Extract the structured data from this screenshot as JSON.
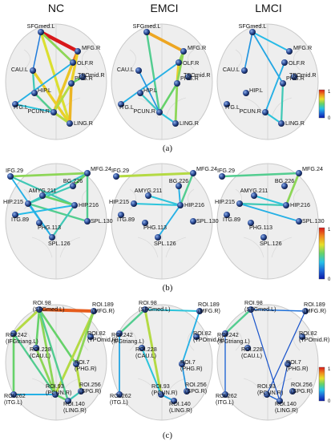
{
  "columns": [
    "NC",
    "EMCI",
    "LMCI"
  ],
  "colorbar": {
    "max_label": "1",
    "min_label": "0"
  },
  "colorscale": [
    "#0a18a8",
    "#1e6ad8",
    "#27c2e8",
    "#66d26a",
    "#e8e02a",
    "#f08a1e",
    "#d8181a"
  ],
  "panels": [
    {
      "caption": "(a)",
      "nodes": [
        {
          "id": "sfg",
          "label": "SFGmed.L"
        },
        {
          "id": "mfg",
          "label": "MFG.R"
        },
        {
          "id": "olf",
          "label": "OLF.R"
        },
        {
          "id": "cau",
          "label": "CAU.L"
        },
        {
          "id": "tpo",
          "label": "TPOmid.R"
        },
        {
          "id": "phg",
          "label": "PHG.R"
        },
        {
          "id": "hip",
          "label": "HIP.L"
        },
        {
          "id": "itg",
          "label": "ITG.L"
        },
        {
          "id": "pcun",
          "label": "PCUN.R"
        },
        {
          "id": "ling",
          "label": "LING.R"
        }
      ],
      "edges": [
        [
          [
            "sfg",
            "mfg",
            1.0
          ],
          [
            "sfg",
            "olf",
            0.55
          ],
          [
            "sfg",
            "ling",
            0.65
          ],
          [
            "mfg",
            "olf",
            0.85
          ],
          [
            "mfg",
            "phg",
            0.7
          ],
          [
            "olf",
            "pcun",
            0.72
          ],
          [
            "cau",
            "hip",
            0.4
          ],
          [
            "cau",
            "ling",
            0.7
          ],
          [
            "hip",
            "pcun",
            0.45
          ],
          [
            "phg",
            "ling",
            0.75
          ],
          [
            "phg",
            "pcun",
            0.6
          ],
          [
            "itg",
            "pcun",
            0.35
          ],
          [
            "pcun",
            "ling",
            0.6
          ],
          [
            "sfg",
            "cau",
            0.2
          ],
          [
            "itg",
            "olf",
            0.3
          ],
          [
            "tpo",
            "phg",
            0.5
          ]
        ],
        [
          [
            "sfg",
            "mfg",
            0.78
          ],
          [
            "sfg",
            "pcun",
            0.45
          ],
          [
            "mfg",
            "olf",
            0.55
          ],
          [
            "olf",
            "phg",
            0.7
          ],
          [
            "mfg",
            "phg",
            0.55
          ],
          [
            "phg",
            "pcun",
            0.5
          ],
          [
            "phg",
            "ling",
            0.55
          ],
          [
            "hip",
            "pcun",
            0.38
          ],
          [
            "itg",
            "olf",
            0.3
          ],
          [
            "pcun",
            "ling",
            0.35
          ],
          [
            "cau",
            "pcun",
            0.25
          ]
        ],
        [
          [
            "sfg",
            "mfg",
            0.32
          ],
          [
            "sfg",
            "cau",
            0.25
          ],
          [
            "sfg",
            "phg",
            0.28
          ],
          [
            "phg",
            "ling",
            0.4
          ],
          [
            "pcun",
            "ling",
            0.35
          ],
          [
            "olf",
            "pcun",
            0.3
          ]
        ]
      ]
    },
    {
      "caption": "(b)",
      "nodes": [
        {
          "id": "ifg",
          "label": "IFG.29"
        },
        {
          "id": "mfg",
          "label": "MFG.24"
        },
        {
          "id": "bg",
          "label": "BG.226"
        },
        {
          "id": "amyg",
          "label": "AMYG.211"
        },
        {
          "id": "hipl",
          "label": "HIP.215"
        },
        {
          "id": "hipr",
          "label": "HIP.216"
        },
        {
          "id": "itg",
          "label": "ITG.89"
        },
        {
          "id": "phg",
          "label": "PHG.113"
        },
        {
          "id": "spl130",
          "label": "SPL.130"
        },
        {
          "id": "spl126",
          "label": "SPL.126"
        }
      ],
      "edges": [
        [
          [
            "ifg",
            "mfg",
            0.55
          ],
          [
            "ifg",
            "hipr",
            0.4
          ],
          [
            "mfg",
            "hipl",
            0.38
          ],
          [
            "mfg",
            "spl130",
            0.45
          ],
          [
            "bg",
            "hipl",
            0.4
          ],
          [
            "amyg",
            "hipr",
            0.5
          ],
          [
            "hipl",
            "spl126",
            0.3
          ],
          [
            "hipl",
            "spl130",
            0.45
          ],
          [
            "hipr",
            "itg",
            0.32
          ],
          [
            "hipr",
            "spl126",
            0.4
          ],
          [
            "mfg",
            "bg",
            0.5
          ],
          [
            "ifg",
            "spl126",
            0.3
          ]
        ],
        [
          [
            "ifg",
            "mfg",
            0.6
          ],
          [
            "mfg",
            "hipr",
            0.45
          ],
          [
            "hipl",
            "hipr",
            0.35
          ],
          [
            "hipr",
            "spl126",
            0.3
          ],
          [
            "amyg",
            "hipr",
            0.35
          ],
          [
            "bg",
            "hipr",
            0.3
          ]
        ],
        [
          [
            "ifg",
            "mfg",
            0.45
          ],
          [
            "mfg",
            "hipr",
            0.55
          ],
          [
            "hipl",
            "hipr",
            0.4
          ],
          [
            "hipl",
            "spl130",
            0.3
          ],
          [
            "amyg",
            "hipr",
            0.35
          ]
        ]
      ]
    },
    {
      "caption": "(c)",
      "nodes": [
        {
          "id": "sfg",
          "label": "ROI.98",
          "sub": "(SFGmed.L)"
        },
        {
          "id": "mfg",
          "label": "ROI.189",
          "sub": "(MFG.R)"
        },
        {
          "id": "ifg",
          "label": "ROI.242",
          "sub": "(IFGtriang.L)"
        },
        {
          "id": "tpo",
          "label": "ROI.82",
          "sub": "(TPOmid.R)"
        },
        {
          "id": "cau",
          "label": "ROI.228",
          "sub": "(CAU.L)"
        },
        {
          "id": "phg",
          "label": "ROI.7",
          "sub": "(PHG.R)"
        },
        {
          "id": "itg",
          "label": "ROI.262",
          "sub": "(ITG.L)"
        },
        {
          "id": "pcun",
          "label": "ROI.93",
          "sub": "(PCUN.R)"
        },
        {
          "id": "spg",
          "label": "ROI.256",
          "sub": "(SPG.R)"
        },
        {
          "id": "ling",
          "label": "ROI.140",
          "sub": "(LING.R)"
        }
      ],
      "edges": [
        [
          [
            "sfg",
            "mfg",
            0.9
          ],
          [
            "sfg",
            "ifg",
            0.6
          ],
          [
            "sfg",
            "cau",
            0.5
          ],
          [
            "sfg",
            "pcun",
            0.55
          ],
          [
            "sfg",
            "phg",
            0.5
          ],
          [
            "mfg",
            "pcun",
            0.6
          ],
          [
            "mfg",
            "phg",
            0.55
          ],
          [
            "ifg",
            "itg",
            0.5
          ],
          [
            "ifg",
            "pcun",
            0.45
          ],
          [
            "cau",
            "pcun",
            0.55
          ],
          [
            "phg",
            "spg",
            0.6
          ],
          [
            "pcun",
            "ling",
            0.5
          ],
          [
            "spg",
            "ling",
            0.4
          ],
          [
            "itg",
            "pcun",
            0.3
          ],
          [
            "sfg",
            "ling",
            0.45
          ]
        ],
        [
          [
            "sfg",
            "mfg",
            0.35
          ],
          [
            "sfg",
            "ifg",
            0.45
          ],
          [
            "sfg",
            "pcun",
            0.6
          ],
          [
            "mfg",
            "phg",
            0.3
          ],
          [
            "ifg",
            "itg",
            0.28
          ],
          [
            "cau",
            "pcun",
            0.35
          ],
          [
            "pcun",
            "ling",
            0.3
          ],
          [
            "phg",
            "spg",
            0.25
          ]
        ],
        [
          [
            "sfg",
            "mfg",
            0.18
          ],
          [
            "sfg",
            "ifg",
            0.45
          ],
          [
            "sfg",
            "ling",
            0.12
          ],
          [
            "mfg",
            "pcun",
            0.12
          ],
          [
            "ifg",
            "itg",
            0.15
          ],
          [
            "pcun",
            "ling",
            0.15
          ],
          [
            "phg",
            "ling",
            0.12
          ]
        ]
      ]
    }
  ]
}
